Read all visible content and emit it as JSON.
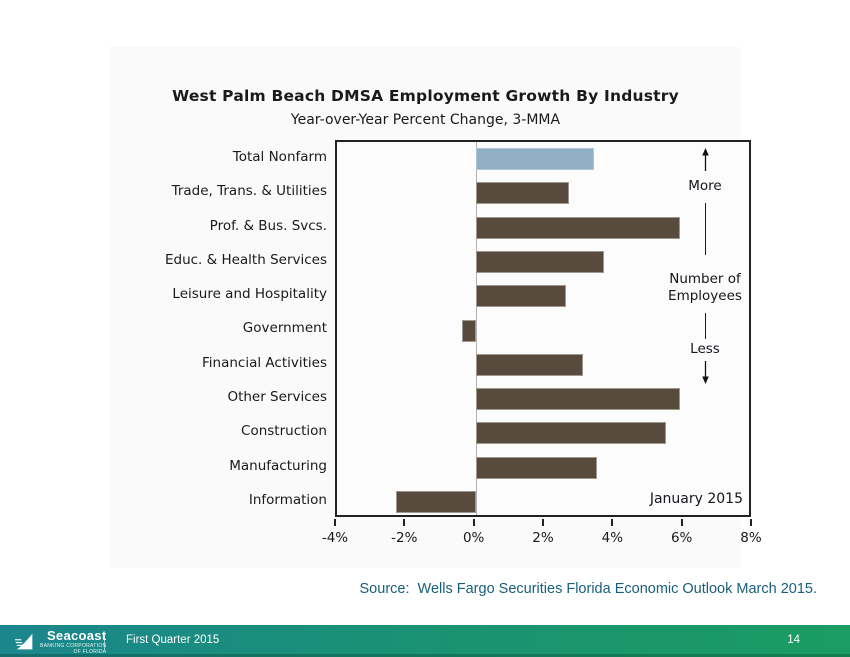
{
  "page": {
    "source_text": "Source:  Wells Fargo Securities Florida Economic Outlook March 2015.",
    "footer": {
      "logo_text": "Seacoast",
      "logo_subtext_line1": "BANKING CORPORATION",
      "logo_subtext_line2": "OF FLORIDA",
      "period_label": "First Quarter 2015",
      "page_number": "14"
    }
  },
  "colors": {
    "bar_brown": "#584a3c",
    "bar_highlight_blue": "#91afc5",
    "plot_border": "#222222",
    "panel_background": "#fafafa",
    "source_text": "#175f7a",
    "footer_teal": "#1b868d",
    "footer_green": "#1a9c62"
  },
  "chart_data": {
    "type": "bar",
    "orientation": "horizontal",
    "title": "West Palm Beach DMSA Employment Growth By Industry",
    "subtitle": "Year-over-Year Percent Change, 3-MMA",
    "categories": [
      "Total Nonfarm",
      "Trade, Trans. & Utilities",
      "Prof. & Bus. Svcs.",
      "Educ. & Health Services",
      "Leisure and Hospitality",
      "Government",
      "Financial Activities",
      "Other Services",
      "Construction",
      "Manufacturing",
      "Information"
    ],
    "values": [
      3.4,
      2.7,
      5.9,
      3.7,
      2.6,
      -0.4,
      3.1,
      5.9,
      5.5,
      3.5,
      -2.3
    ],
    "highlight_index": 0,
    "xlim": [
      -4,
      8
    ],
    "x_tick_labels": [
      "-4%",
      "-2%",
      "0%",
      "2%",
      "4%",
      "6%",
      "8%"
    ],
    "grid": "zero-line-only",
    "legend": "none",
    "annotations": {
      "more_label": "More",
      "axis_label_line1": "Number of",
      "axis_label_line2": "Employees",
      "less_label": "Less",
      "date_label": "January 2015"
    }
  }
}
